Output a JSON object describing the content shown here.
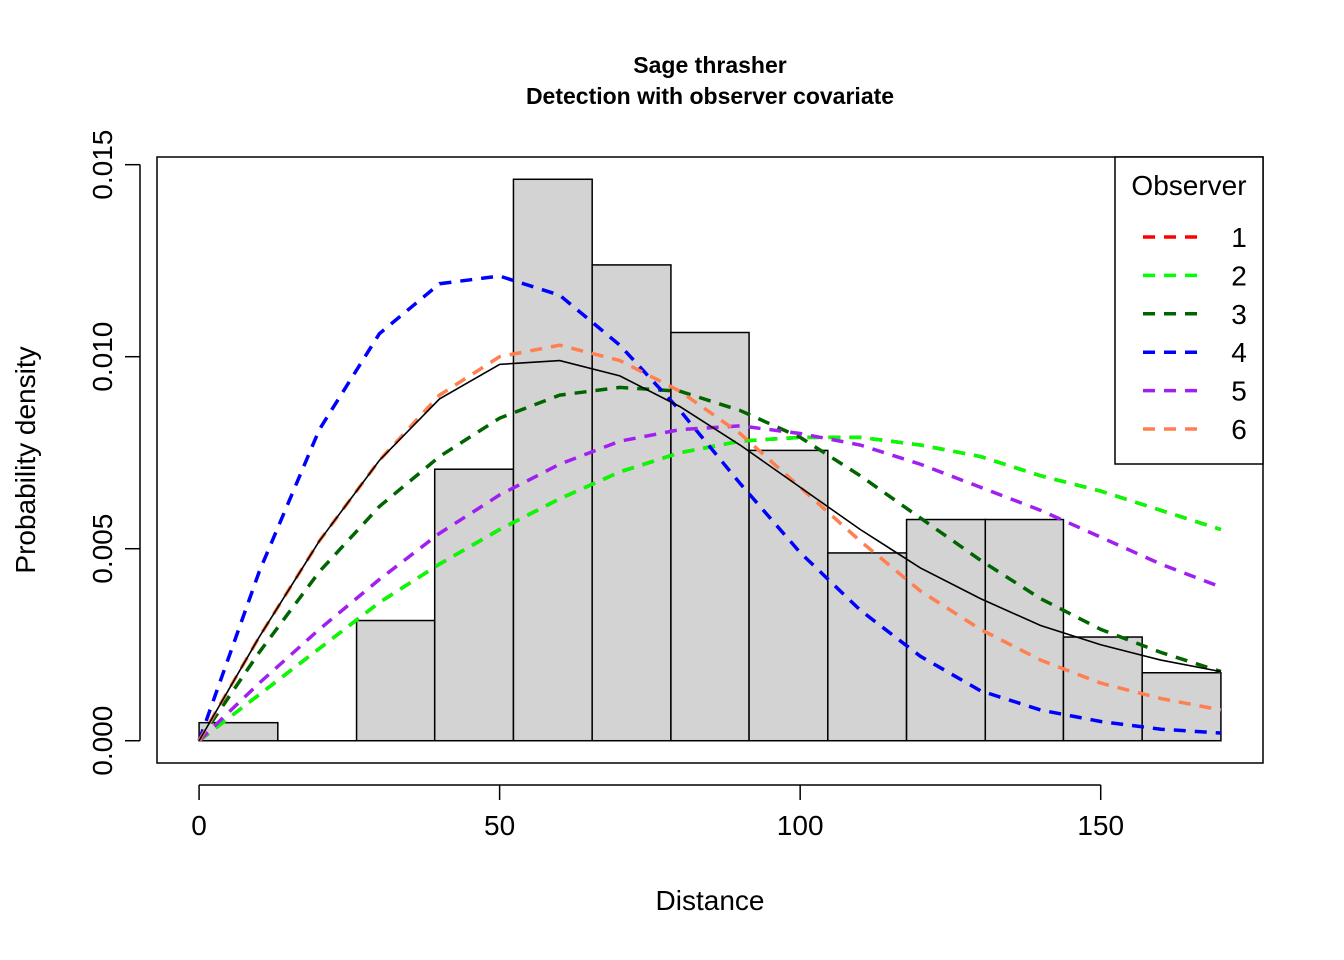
{
  "chart_data": {
    "type": "bar",
    "title": "Sage thrasher",
    "subtitle": "Detection with observer covariate",
    "xlabel": "Distance",
    "ylabel": "Probability density",
    "xlim": [
      -7,
      177
    ],
    "ylim": [
      -0.00058,
      0.0152
    ],
    "x_ticks": [
      0,
      50,
      100,
      150
    ],
    "x_tick_labels": [
      "0",
      "50",
      "100",
      "150"
    ],
    "y_ticks": [
      0.0,
      0.005,
      0.01,
      0.015
    ],
    "y_tick_labels": [
      "0.000",
      "0.005",
      "0.010",
      "0.015"
    ],
    "grid": false,
    "histogram": {
      "bin_edges": [
        0,
        13.1,
        26.2,
        39.2,
        52.3,
        65.4,
        78.5,
        91.5,
        104.6,
        117.7,
        130.8,
        143.8,
        156.9,
        170
      ],
      "values": [
        0.00047,
        0.0,
        0.00313,
        0.00707,
        0.01462,
        0.01239,
        0.01063,
        0.00756,
        0.00489,
        0.00576,
        0.00576,
        0.0027,
        0.00177
      ],
      "fill": "#d3d3d3"
    },
    "fitted_curve": {
      "name": "overall",
      "color": "#000000",
      "x": [
        0,
        10,
        20,
        30,
        40,
        50,
        60,
        70,
        80,
        90,
        100,
        110,
        120,
        130,
        140,
        150,
        160,
        170
      ],
      "y": [
        0.0,
        0.0027,
        0.0052,
        0.0073,
        0.0089,
        0.0098,
        0.0099,
        0.0095,
        0.0087,
        0.0077,
        0.0066,
        0.0055,
        0.0045,
        0.0037,
        0.003,
        0.0025,
        0.0021,
        0.0018
      ]
    },
    "legend": {
      "title": "Observer",
      "placement": "top-right"
    },
    "series": [
      {
        "name": "1",
        "color": "#ff0000",
        "x": [
          0,
          10,
          20,
          30,
          40,
          50,
          60,
          70,
          80,
          90,
          100,
          110,
          120,
          130,
          140,
          150,
          160,
          170
        ],
        "y": [
          0.0,
          0.0012,
          0.0024,
          0.0036,
          0.0046,
          0.0055,
          0.0063,
          0.007,
          0.0075,
          0.0078,
          0.0079,
          0.0079,
          0.0077,
          0.0074,
          0.0069,
          0.0065,
          0.006,
          0.0055
        ]
      },
      {
        "name": "2",
        "color": "#00ff00",
        "x": [
          0,
          10,
          20,
          30,
          40,
          50,
          60,
          70,
          80,
          90,
          100,
          110,
          120,
          130,
          140,
          150,
          160,
          170
        ],
        "y": [
          0.0,
          0.0012,
          0.0024,
          0.0036,
          0.0046,
          0.0055,
          0.0063,
          0.007,
          0.0075,
          0.0078,
          0.0079,
          0.0079,
          0.0077,
          0.0074,
          0.0069,
          0.0065,
          0.006,
          0.0055
        ]
      },
      {
        "name": "3",
        "color": "#006400",
        "x": [
          0,
          10,
          20,
          30,
          40,
          50,
          60,
          70,
          80,
          90,
          100,
          110,
          120,
          130,
          140,
          150,
          160,
          170
        ],
        "y": [
          0.0,
          0.0023,
          0.0044,
          0.0061,
          0.0074,
          0.0084,
          0.009,
          0.0092,
          0.0091,
          0.0086,
          0.0079,
          0.0069,
          0.0058,
          0.0047,
          0.0037,
          0.0029,
          0.0023,
          0.0018
        ]
      },
      {
        "name": "4",
        "color": "#0000ff",
        "x": [
          0,
          10,
          20,
          30,
          40,
          50,
          60,
          70,
          80,
          90,
          100,
          110,
          120,
          130,
          140,
          150,
          160,
          170
        ],
        "y": [
          0.0,
          0.0044,
          0.0081,
          0.0106,
          0.0119,
          0.0121,
          0.0116,
          0.0103,
          0.0086,
          0.0067,
          0.0049,
          0.0034,
          0.0022,
          0.0013,
          0.0008,
          0.0005,
          0.0003,
          0.0002
        ]
      },
      {
        "name": "5",
        "color": "#a020f0",
        "x": [
          0,
          10,
          20,
          30,
          40,
          50,
          60,
          70,
          80,
          90,
          100,
          110,
          120,
          130,
          140,
          150,
          160,
          170
        ],
        "y": [
          0.0,
          0.0015,
          0.0029,
          0.0042,
          0.0054,
          0.0064,
          0.0072,
          0.0078,
          0.0081,
          0.0082,
          0.008,
          0.0077,
          0.0072,
          0.0066,
          0.006,
          0.0053,
          0.0046,
          0.004
        ]
      },
      {
        "name": "6",
        "color": "#ff7f50",
        "x": [
          0,
          10,
          20,
          30,
          40,
          50,
          60,
          70,
          80,
          90,
          100,
          110,
          120,
          130,
          140,
          150,
          160,
          170
        ],
        "y": [
          0.0,
          0.0027,
          0.0052,
          0.0073,
          0.009,
          0.01,
          0.0103,
          0.0099,
          0.0091,
          0.008,
          0.0066,
          0.0052,
          0.0039,
          0.0029,
          0.0021,
          0.0015,
          0.0011,
          0.0008
        ]
      }
    ]
  }
}
